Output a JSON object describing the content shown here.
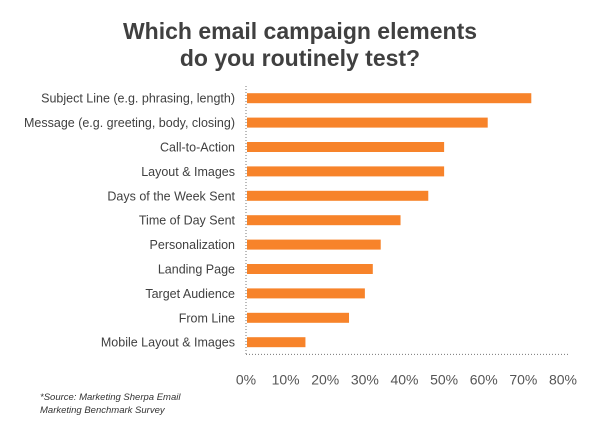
{
  "chart_data": {
    "type": "bar",
    "orientation": "horizontal",
    "title": "Which email campaign elements do you routinely test?",
    "title_lines": [
      "Which email campaign elements",
      "do you routinely test?"
    ],
    "categories": [
      "Subject Line (e.g. phrasing, length)",
      "Message (e.g. greeting, body, closing)",
      "Call-to-Action",
      "Layout & Images",
      "Days of the Week Sent",
      "Time of Day Sent",
      "Personalization",
      "Landing Page",
      "Target Audience",
      "From Line",
      "Mobile Layout & Images"
    ],
    "values": [
      72,
      61,
      50,
      50,
      46,
      39,
      34,
      32,
      30,
      26,
      15
    ],
    "unit": "%",
    "xlim": [
      0,
      80
    ],
    "xticks": [
      "0%",
      "10%",
      "20%",
      "30%",
      "40%",
      "50%",
      "60%",
      "70%",
      "80%"
    ],
    "grid": false,
    "bar_color": "#f7832a",
    "source_lines": [
      "*Source: Marketing Sherpa Email",
      "Marketing Benchmark Survey"
    ]
  }
}
